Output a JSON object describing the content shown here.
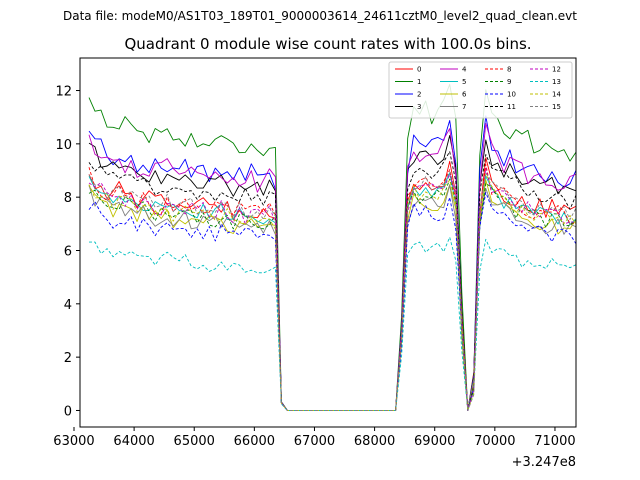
{
  "chart_data": {
    "type": "line",
    "suptitle": "Data file: modeM0/AS1T03_189T01_9000003614_24611cztM0_level2_quad_clean.evt",
    "title": "Quadrant 0 module wise count rates with 100.0s bins.",
    "xlabel": "",
    "ylabel": "",
    "x_offset_label": "+3.247e8",
    "xlim": [
      63100,
      71350
    ],
    "ylim": [
      -0.62,
      13.22
    ],
    "xticks": [
      63000,
      64000,
      65000,
      66000,
      67000,
      68000,
      69000,
      70000,
      71000
    ],
    "yticks": [
      0,
      2,
      4,
      6,
      8,
      10,
      12
    ],
    "legend_position": "top-right",
    "grid": false,
    "x_start": 63250,
    "x_step": 100,
    "gap_range": [
      66550,
      68350
    ],
    "envelope": {
      "segment1": [
        8.2,
        7.9,
        7.8,
        7.6,
        7.5,
        7.6,
        7.5,
        7.4,
        7.3,
        7.4,
        7.3,
        7.2,
        7.2,
        7.3,
        7.1,
        7.1,
        7.2,
        7.1,
        7.0,
        7.1,
        7.0,
        7.0,
        7.1,
        7.0,
        6.9,
        7.0,
        6.9,
        7.0,
        6.9,
        6.9,
        7.0,
        6.8
      ],
      "drop": [
        0.25,
        0.0
      ],
      "segment2": [
        0.0,
        2.5,
        7.3,
        7.9,
        7.8,
        7.9,
        7.7,
        7.8,
        7.9,
        8.3,
        7.4,
        3.0,
        0.0,
        1.2,
        6.9,
        8.5,
        7.8,
        7.6,
        7.5,
        7.4,
        7.3,
        7.2,
        7.1,
        7.0,
        7.0,
        6.9,
        7.0,
        6.9,
        6.8,
        6.8,
        6.9,
        5.3
      ]
    },
    "series": [
      {
        "name": "0",
        "color": "#ff0000",
        "dash": "solid",
        "level": 1.085,
        "noise": 0.35
      },
      {
        "name": "1",
        "color": "#008000",
        "dash": "solid",
        "level": 1.43,
        "noise": 0.4
      },
      {
        "name": "2",
        "color": "#0000ff",
        "dash": "solid",
        "level": 1.27,
        "noise": 0.4
      },
      {
        "name": "3",
        "color": "#000000",
        "dash": "solid",
        "level": 1.21,
        "noise": 0.35
      },
      {
        "name": "4",
        "color": "#bf00bf",
        "dash": "solid",
        "level": 1.24,
        "noise": 0.4
      },
      {
        "name": "5",
        "color": "#00bfbf",
        "dash": "solid",
        "level": 1.05,
        "noise": 0.3
      },
      {
        "name": "6",
        "color": "#bfbf00",
        "dash": "solid",
        "level": 1.0,
        "noise": 0.3
      },
      {
        "name": "7",
        "color": "#808080",
        "dash": "solid",
        "level": 1.0,
        "noise": 0.3
      },
      {
        "name": "8",
        "color": "#ff0000",
        "dash": "dashed",
        "level": 1.07,
        "noise": 0.35
      },
      {
        "name": "9",
        "color": "#008000",
        "dash": "dashed",
        "level": 1.03,
        "noise": 0.35
      },
      {
        "name": "10",
        "color": "#0000ff",
        "dash": "dashed",
        "level": 0.95,
        "noise": 0.35
      },
      {
        "name": "11",
        "color": "#000000",
        "dash": "dashed",
        "level": 1.16,
        "noise": 0.35
      },
      {
        "name": "12",
        "color": "#bf00bf",
        "dash": "dashed",
        "level": 1.06,
        "noise": 0.35
      },
      {
        "name": "13",
        "color": "#00bfbf",
        "dash": "dashed",
        "level": 0.78,
        "noise": 0.25
      },
      {
        "name": "14",
        "color": "#bfbf00",
        "dash": "dashed",
        "level": 1.04,
        "noise": 0.3
      },
      {
        "name": "15",
        "color": "#808080",
        "dash": "dashed",
        "level": 1.08,
        "noise": 0.3
      }
    ]
  }
}
